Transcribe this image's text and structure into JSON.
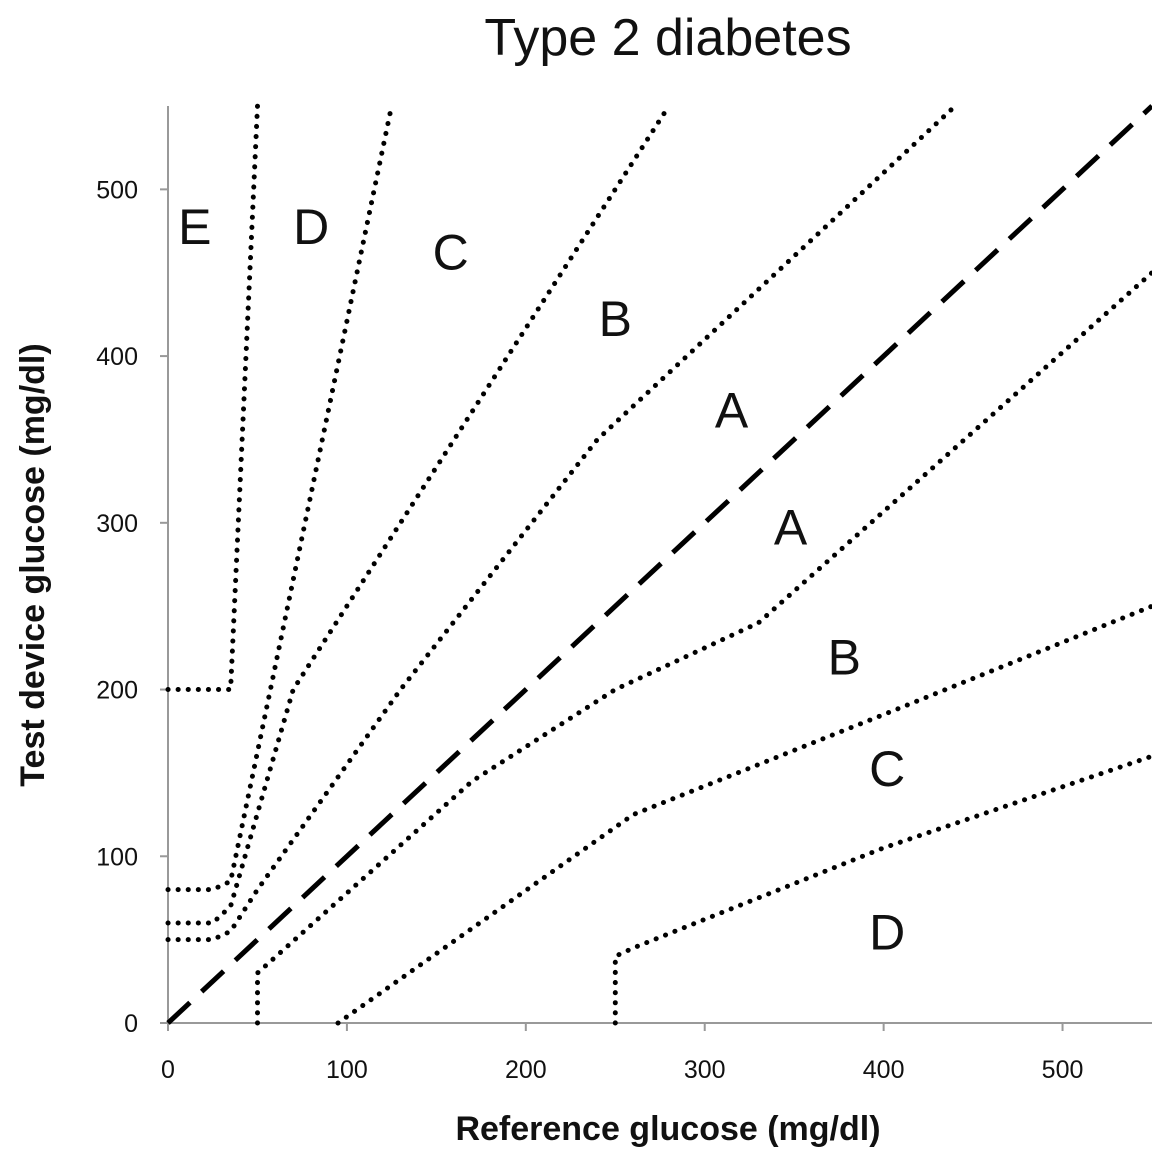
{
  "chart_data": {
    "type": "line",
    "title": "Type 2 diabetes",
    "xlabel": "Reference glucose (mg/dl)",
    "ylabel": "Test device glucose (mg/dl)",
    "xlim": [
      0,
      550
    ],
    "ylim": [
      0,
      550
    ],
    "xticks": [
      0,
      100,
      200,
      300,
      400,
      500
    ],
    "yticks": [
      0,
      100,
      200,
      300,
      400,
      500
    ],
    "grid": false,
    "identity_line": {
      "style": "dashed",
      "points": [
        [
          0,
          0
        ],
        [
          550,
          550
        ]
      ]
    },
    "zone_boundaries": [
      {
        "id": "e-upper",
        "style": "dotted",
        "points": [
          [
            0,
            200
          ],
          [
            35,
            200
          ],
          [
            50,
            550
          ]
        ]
      },
      {
        "id": "d-upper",
        "style": "dotted",
        "points": [
          [
            0,
            80
          ],
          [
            25,
            80
          ],
          [
            35,
            85
          ],
          [
            125,
            550
          ]
        ]
      },
      {
        "id": "c-upper",
        "style": "dotted",
        "points": [
          [
            0,
            60
          ],
          [
            25,
            60
          ],
          [
            35,
            70
          ],
          [
            70,
            200
          ],
          [
            280,
            550
          ]
        ]
      },
      {
        "id": "b-upper",
        "style": "dotted",
        "points": [
          [
            0,
            50
          ],
          [
            25,
            50
          ],
          [
            35,
            55
          ],
          [
            50,
            80
          ],
          [
            130,
            200
          ],
          [
            240,
            350
          ],
          [
            440,
            550
          ]
        ]
      },
      {
        "id": "b-lower",
        "style": "dotted",
        "points": [
          [
            50,
            0
          ],
          [
            50,
            30
          ],
          [
            170,
            145
          ],
          [
            250,
            200
          ],
          [
            330,
            240
          ],
          [
            550,
            450
          ]
        ]
      },
      {
        "id": "c-lower",
        "style": "dotted",
        "points": [
          [
            95,
            0
          ],
          [
            260,
            125
          ],
          [
            400,
            185
          ],
          [
            550,
            250
          ]
        ]
      },
      {
        "id": "d-lower",
        "style": "dotted",
        "points": [
          [
            250,
            0
          ],
          [
            250,
            40
          ],
          [
            260,
            45
          ],
          [
            400,
            105
          ],
          [
            550,
            160
          ]
        ]
      }
    ],
    "zone_labels": [
      {
        "text": "E",
        "x": 15,
        "y": 475
      },
      {
        "text": "D",
        "x": 80,
        "y": 475
      },
      {
        "text": "C",
        "x": 158,
        "y": 460
      },
      {
        "text": "B",
        "x": 250,
        "y": 420
      },
      {
        "text": "A",
        "x": 315,
        "y": 365
      },
      {
        "text": "A",
        "x": 348,
        "y": 295
      },
      {
        "text": "B",
        "x": 378,
        "y": 217
      },
      {
        "text": "C",
        "x": 402,
        "y": 150
      },
      {
        "text": "D",
        "x": 402,
        "y": 52
      }
    ]
  }
}
